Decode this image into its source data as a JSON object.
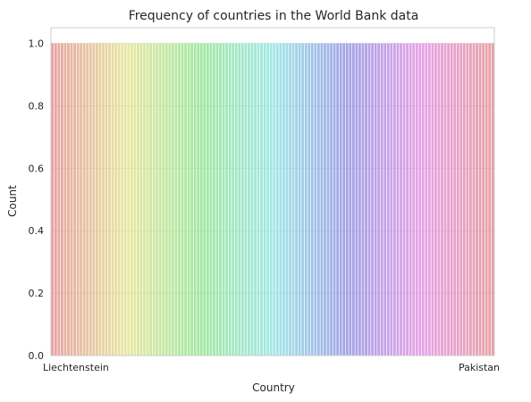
{
  "chart_data": {
    "type": "bar",
    "title": "Frequency of countries in the World Bank data",
    "xlabel": "Country",
    "ylabel": "Count",
    "ylim": [
      0,
      1.05
    ],
    "yticks": [
      "0.0",
      "0.2",
      "0.4",
      "0.6",
      "0.8",
      "1.0"
    ],
    "grid": "y",
    "category_count": 140,
    "values_all_equal": 1.0,
    "visible_tick_labels": [
      "Liechtenstein",
      "Pakistan"
    ],
    "palette": "husl",
    "bar_alpha": 0.6
  }
}
